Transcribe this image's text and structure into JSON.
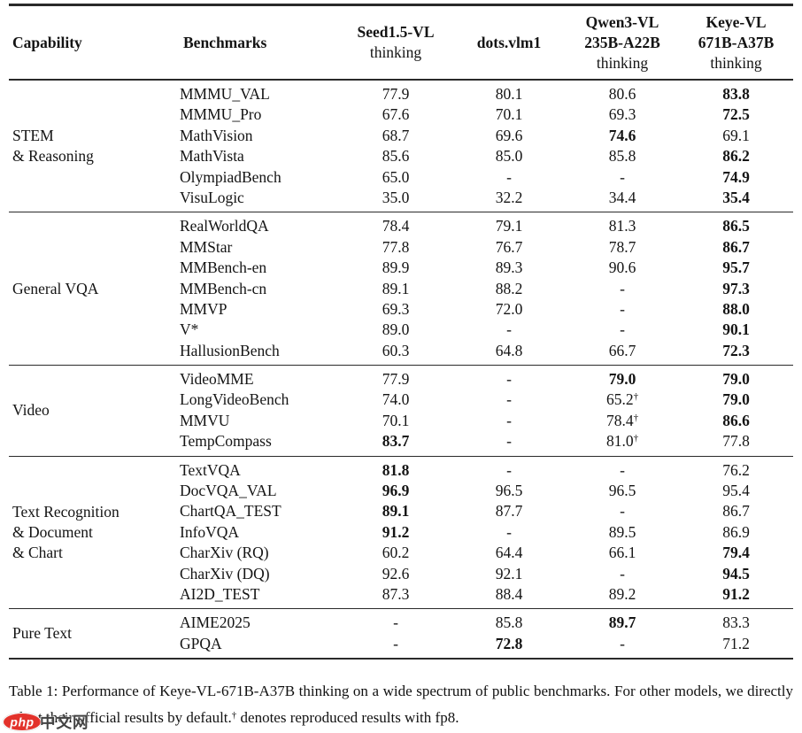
{
  "colors": {
    "background": "#ffffff",
    "text": "#141414",
    "rule": "#2a2a2a",
    "watermark_red": "#e3322b"
  },
  "table": {
    "header": {
      "capability_label": "Capability",
      "benchmarks_label": "Benchmarks",
      "model_columns": [
        {
          "lines": [
            "Seed1.5-VL",
            "thinking"
          ],
          "bold": [
            true,
            false
          ]
        },
        {
          "lines": [
            "dots.vlm1"
          ],
          "bold": [
            true
          ]
        },
        {
          "lines": [
            "Qwen3-VL",
            "235B-A22B",
            "thinking"
          ],
          "bold": [
            true,
            true,
            false
          ]
        },
        {
          "lines": [
            "Keye-VL",
            "671B-A37B",
            "thinking"
          ],
          "bold": [
            true,
            true,
            false
          ]
        }
      ]
    },
    "groups": [
      {
        "capability_lines": [
          "STEM",
          "& Reasoning"
        ],
        "rows": [
          {
            "benchmark": "MMMU_VAL",
            "values": [
              {
                "v": "77.9"
              },
              {
                "v": "80.1"
              },
              {
                "v": "80.6"
              },
              {
                "v": "83.8",
                "b": true
              }
            ]
          },
          {
            "benchmark": "MMMU_Pro",
            "values": [
              {
                "v": "67.6"
              },
              {
                "v": "70.1"
              },
              {
                "v": "69.3"
              },
              {
                "v": "72.5",
                "b": true
              }
            ]
          },
          {
            "benchmark": "MathVision",
            "values": [
              {
                "v": "68.7"
              },
              {
                "v": "69.6"
              },
              {
                "v": "74.6",
                "b": true
              },
              {
                "v": "69.1"
              }
            ]
          },
          {
            "benchmark": "MathVista",
            "values": [
              {
                "v": "85.6"
              },
              {
                "v": "85.0"
              },
              {
                "v": "85.8"
              },
              {
                "v": "86.2",
                "b": true
              }
            ]
          },
          {
            "benchmark": "OlympiadBench",
            "values": [
              {
                "v": "65.0"
              },
              {
                "v": "-"
              },
              {
                "v": "-"
              },
              {
                "v": "74.9",
                "b": true
              }
            ]
          },
          {
            "benchmark": "VisuLogic",
            "values": [
              {
                "v": "35.0"
              },
              {
                "v": "32.2"
              },
              {
                "v": "34.4"
              },
              {
                "v": "35.4",
                "b": true
              }
            ]
          }
        ]
      },
      {
        "capability_lines": [
          "General VQA"
        ],
        "rows": [
          {
            "benchmark": "RealWorldQA",
            "values": [
              {
                "v": "78.4"
              },
              {
                "v": "79.1"
              },
              {
                "v": "81.3"
              },
              {
                "v": "86.5",
                "b": true
              }
            ]
          },
          {
            "benchmark": "MMStar",
            "values": [
              {
                "v": "77.8"
              },
              {
                "v": "76.7"
              },
              {
                "v": "78.7"
              },
              {
                "v": "86.7",
                "b": true
              }
            ]
          },
          {
            "benchmark": "MMBench-en",
            "values": [
              {
                "v": "89.9"
              },
              {
                "v": "89.3"
              },
              {
                "v": "90.6"
              },
              {
                "v": "95.7",
                "b": true
              }
            ]
          },
          {
            "benchmark": "MMBench-cn",
            "values": [
              {
                "v": "89.1"
              },
              {
                "v": "88.2"
              },
              {
                "v": "-"
              },
              {
                "v": "97.3",
                "b": true
              }
            ]
          },
          {
            "benchmark": "MMVP",
            "values": [
              {
                "v": "69.3"
              },
              {
                "v": "72.0"
              },
              {
                "v": "-"
              },
              {
                "v": "88.0",
                "b": true
              }
            ]
          },
          {
            "benchmark": "V*",
            "values": [
              {
                "v": "89.0"
              },
              {
                "v": "-"
              },
              {
                "v": "-"
              },
              {
                "v": "90.1",
                "b": true
              }
            ]
          },
          {
            "benchmark": "HallusionBench",
            "values": [
              {
                "v": "60.3"
              },
              {
                "v": "64.8"
              },
              {
                "v": "66.7"
              },
              {
                "v": "72.3",
                "b": true
              }
            ]
          }
        ]
      },
      {
        "capability_lines": [
          "Video"
        ],
        "rows": [
          {
            "benchmark": "VideoMME",
            "values": [
              {
                "v": "77.9"
              },
              {
                "v": "-"
              },
              {
                "v": "79.0",
                "b": true
              },
              {
                "v": "79.0",
                "b": true
              }
            ]
          },
          {
            "benchmark": "LongVideoBench",
            "values": [
              {
                "v": "74.0"
              },
              {
                "v": "-"
              },
              {
                "v": "65.2",
                "dagger": true
              },
              {
                "v": "79.0",
                "b": true
              }
            ]
          },
          {
            "benchmark": "MMVU",
            "values": [
              {
                "v": "70.1"
              },
              {
                "v": "-"
              },
              {
                "v": "78.4",
                "dagger": true
              },
              {
                "v": "86.6",
                "b": true
              }
            ]
          },
          {
            "benchmark": "TempCompass",
            "values": [
              {
                "v": "83.7",
                "b": true
              },
              {
                "v": "-"
              },
              {
                "v": "81.0",
                "dagger": true
              },
              {
                "v": "77.8"
              }
            ]
          }
        ]
      },
      {
        "capability_lines": [
          "Text Recognition",
          "& Document",
          "& Chart"
        ],
        "rows": [
          {
            "benchmark": "TextVQA",
            "values": [
              {
                "v": "81.8",
                "b": true
              },
              {
                "v": "-"
              },
              {
                "v": "-"
              },
              {
                "v": "76.2"
              }
            ]
          },
          {
            "benchmark": "DocVQA_VAL",
            "values": [
              {
                "v": "96.9",
                "b": true
              },
              {
                "v": "96.5"
              },
              {
                "v": "96.5"
              },
              {
                "v": "95.4"
              }
            ]
          },
          {
            "benchmark": "ChartQA_TEST",
            "values": [
              {
                "v": "89.1",
                "b": true
              },
              {
                "v": "87.7"
              },
              {
                "v": "-"
              },
              {
                "v": "86.7"
              }
            ]
          },
          {
            "benchmark": "InfoVQA",
            "values": [
              {
                "v": "91.2",
                "b": true
              },
              {
                "v": "-"
              },
              {
                "v": "89.5"
              },
              {
                "v": "86.9"
              }
            ]
          },
          {
            "benchmark": "CharXiv (RQ)",
            "values": [
              {
                "v": "60.2"
              },
              {
                "v": "64.4"
              },
              {
                "v": "66.1"
              },
              {
                "v": "79.4",
                "b": true
              }
            ]
          },
          {
            "benchmark": "CharXiv (DQ)",
            "values": [
              {
                "v": "92.6"
              },
              {
                "v": "92.1"
              },
              {
                "v": "-"
              },
              {
                "v": "94.5",
                "b": true
              }
            ]
          },
          {
            "benchmark": "AI2D_TEST",
            "values": [
              {
                "v": "87.3"
              },
              {
                "v": "88.4"
              },
              {
                "v": "89.2"
              },
              {
                "v": "91.2",
                "b": true
              }
            ]
          }
        ]
      },
      {
        "capability_lines": [
          "Pure Text"
        ],
        "rows": [
          {
            "benchmark": "AIME2025",
            "values": [
              {
                "v": "-"
              },
              {
                "v": "85.8"
              },
              {
                "v": "89.7",
                "b": true
              },
              {
                "v": "83.3"
              }
            ]
          },
          {
            "benchmark": "GPQA",
            "values": [
              {
                "v": "-"
              },
              {
                "v": "72.8",
                "b": true
              },
              {
                "v": "-"
              },
              {
                "v": "71.2"
              }
            ]
          }
        ]
      }
    ]
  },
  "caption": {
    "before_dagger": "Table 1: Performance of Keye-VL-671B-A37B thinking on a wide spectrum of public benchmarks. For other models, we directly adopt their official results by default.",
    "dagger": "†",
    "after_dagger": " denotes reproduced results with fp8."
  },
  "watermark": {
    "logo_text": "php",
    "site_text": "中文网"
  }
}
